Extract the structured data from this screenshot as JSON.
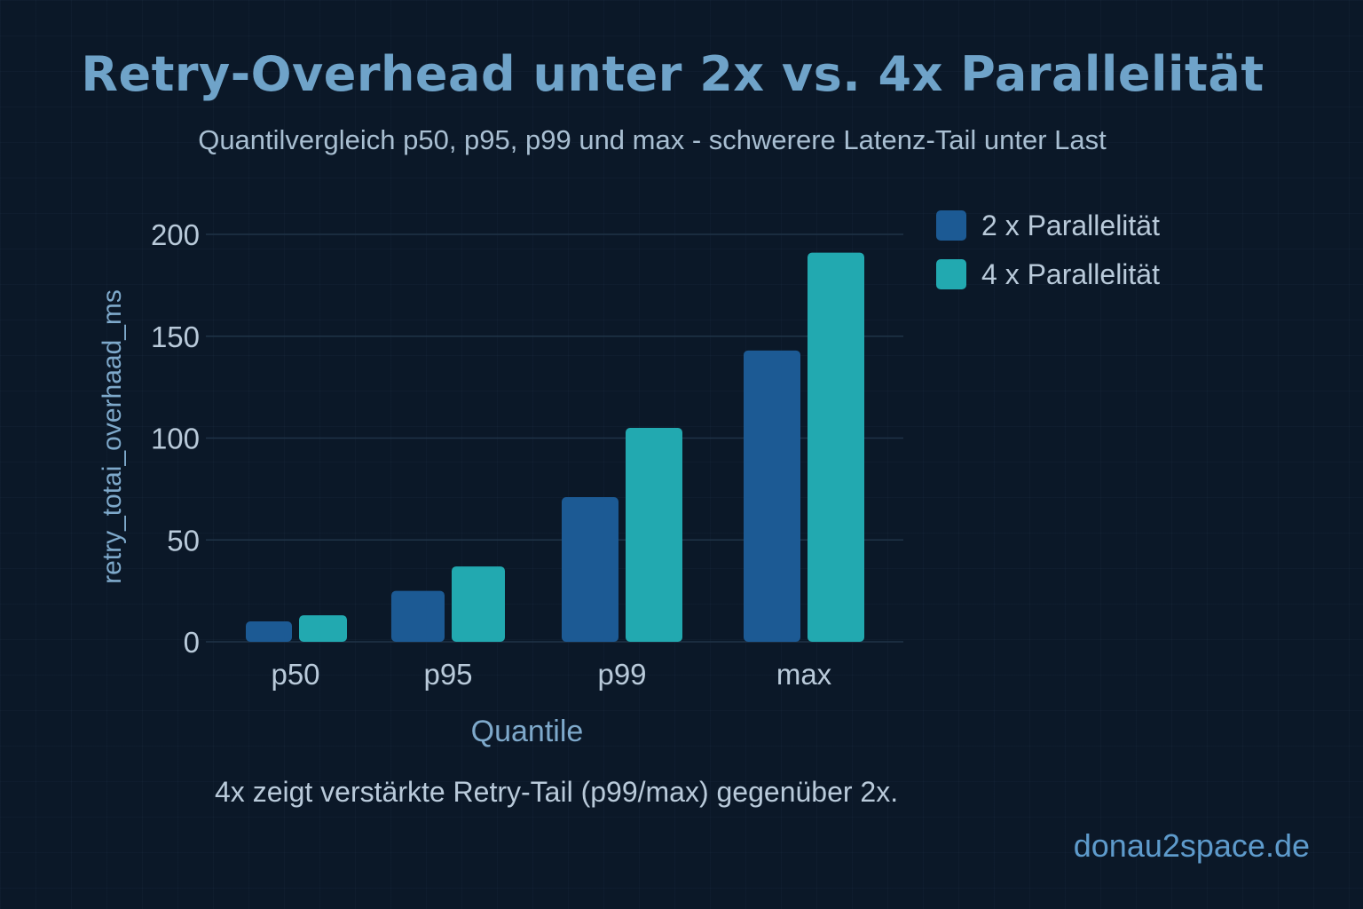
{
  "colors": {
    "background": "#0b1828",
    "title": "#6fa3c9",
    "subtitle": "#a9bfd2",
    "text": "#b9cada",
    "axis_title": "#7ea9cb",
    "grid": "#1f3347",
    "series_2x": "#1c5a94",
    "series_4x": "#22a9b0",
    "brand": "#5e9bcc"
  },
  "chart_data": {
    "type": "bar",
    "title": "Retry-Overhead unter 2x vs. 4x Parallelität",
    "subtitle": "Quantilvergleich p50, p95, p99 und max - schwerere Latenz-Tail unter Last",
    "xlabel": "Quantile",
    "ylabel": "retry_totai_overhaad_ms",
    "ylim": [
      0,
      200
    ],
    "yticks": [
      0,
      50,
      100,
      150,
      200
    ],
    "categories": [
      "p50",
      "p95",
      "p99",
      "max"
    ],
    "series": [
      {
        "name": "2 x Parallelität",
        "values": [
          10,
          25,
          71,
          143
        ]
      },
      {
        "name": "4 x Parallelität",
        "values": [
          13,
          37,
          105,
          191
        ]
      }
    ],
    "legend_position": "top-right",
    "grid": true,
    "annotation": "4x zeigt verstärkte Retry-Tail (p99/max) gegenüber 2x."
  },
  "brand": "donau2space.de"
}
